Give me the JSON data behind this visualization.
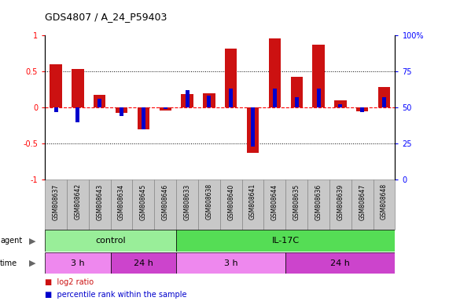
{
  "title": "GDS4807 / A_24_P59403",
  "samples": [
    "GSM808637",
    "GSM808642",
    "GSM808643",
    "GSM808634",
    "GSM808645",
    "GSM808646",
    "GSM808633",
    "GSM808638",
    "GSM808640",
    "GSM808641",
    "GSM808644",
    "GSM808635",
    "GSM808636",
    "GSM808639",
    "GSM808647",
    "GSM808648"
  ],
  "log2_ratio": [
    0.6,
    0.53,
    0.17,
    -0.08,
    -0.3,
    -0.04,
    0.18,
    0.2,
    0.82,
    -0.63,
    0.96,
    0.42,
    0.87,
    0.1,
    -0.05,
    0.28
  ],
  "percentile": [
    47,
    40,
    56,
    44,
    35,
    49,
    62,
    58,
    63,
    23,
    63,
    57,
    63,
    52,
    47,
    57
  ],
  "agent_groups": [
    {
      "label": "control",
      "start": 0,
      "end": 6,
      "color": "#99EE99"
    },
    {
      "label": "IL-17C",
      "start": 6,
      "end": 16,
      "color": "#55DD55"
    }
  ],
  "time_groups": [
    {
      "label": "3 h",
      "start": 0,
      "end": 3,
      "color": "#EE88EE"
    },
    {
      "label": "24 h",
      "start": 3,
      "end": 6,
      "color": "#CC44CC"
    },
    {
      "label": "3 h",
      "start": 6,
      "end": 11,
      "color": "#EE88EE"
    },
    {
      "label": "24 h",
      "start": 11,
      "end": 16,
      "color": "#CC44CC"
    }
  ],
  "bar_color_red": "#CC1111",
  "bar_color_blue": "#0000CC",
  "ylim_left": [
    -1,
    1
  ],
  "ylim_right": [
    0,
    100
  ],
  "yticks_left": [
    -1,
    -0.5,
    0,
    0.5,
    1
  ],
  "yticks_right": [
    0,
    25,
    50,
    75,
    100
  ],
  "ytick_labels_left": [
    "-1",
    "-0.5",
    "0",
    "0.5",
    "1"
  ],
  "ytick_labels_right": [
    "0",
    "25",
    "50",
    "75",
    "100%"
  ],
  "hlines_dotted": [
    0.5,
    -0.5
  ],
  "legend_items": [
    {
      "label": "log2 ratio",
      "color": "#CC1111"
    },
    {
      "label": "percentile rank within the sample",
      "color": "#0000CC"
    }
  ],
  "sample_box_color": "#C8C8C8",
  "bar_width": 0.55,
  "blue_bar_width": 0.18
}
